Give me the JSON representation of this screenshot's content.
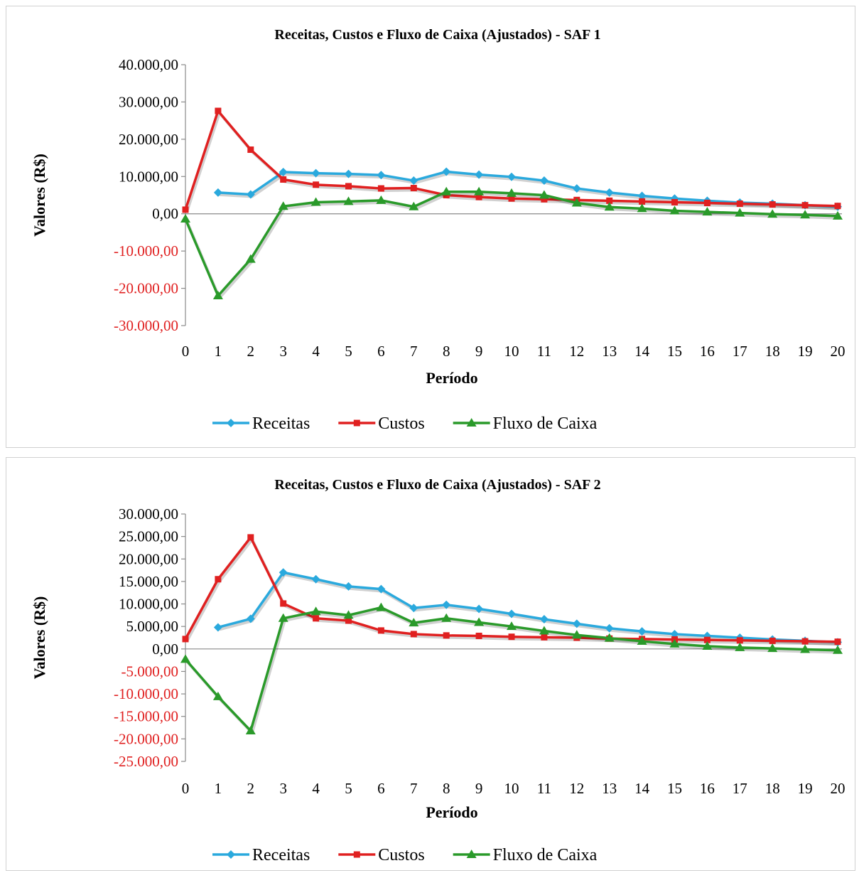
{
  "chart_data": [
    {
      "type": "line",
      "title": "Receitas, Custos e Fluxo de Caixa (Ajustados) - SAF 1",
      "xlabel": "Período",
      "ylabel": "Valores (R$)",
      "ylim": [
        -30000,
        40000
      ],
      "y_ticks": [
        "40.000,00",
        "30.000,00",
        "20.000,00",
        "10.000,00",
        "0,00",
        "-10.000,00",
        "-20.000,00",
        "-30.000,00"
      ],
      "y_tick_values": [
        40000,
        30000,
        20000,
        10000,
        0,
        -10000,
        -20000,
        -30000
      ],
      "categories": [
        "0",
        "1",
        "2",
        "3",
        "4",
        "5",
        "6",
        "7",
        "8",
        "9",
        "10",
        "11",
        "12",
        "13",
        "14",
        "15",
        "16",
        "17",
        "18",
        "19",
        "20"
      ],
      "legend_position": "bottom",
      "series": [
        {
          "name": "Receitas",
          "color": "#2aa9dd",
          "marker": "diamond",
          "values": [
            null,
            5700,
            5200,
            11200,
            10900,
            10700,
            10400,
            8900,
            11300,
            10500,
            9900,
            8900,
            6800,
            5700,
            4800,
            4100,
            3500,
            3000,
            2700,
            2300,
            1900
          ]
        },
        {
          "name": "Custos",
          "color": "#e02020",
          "marker": "square",
          "values": [
            1100,
            27600,
            17200,
            9200,
            7800,
            7400,
            6800,
            6900,
            5000,
            4500,
            4100,
            3900,
            3700,
            3500,
            3300,
            3100,
            2900,
            2700,
            2500,
            2300,
            2100
          ]
        },
        {
          "name": "Fluxo de Caixa",
          "color": "#2a9a2a",
          "marker": "triangle",
          "values": [
            -1400,
            -22000,
            -12200,
            2000,
            3100,
            3300,
            3600,
            1900,
            5900,
            5900,
            5500,
            5000,
            2900,
            1800,
            1400,
            800,
            500,
            200,
            -100,
            -300,
            -600
          ]
        }
      ]
    },
    {
      "type": "line",
      "title": "Receitas, Custos e Fluxo de Caixa (Ajustados) - SAF 2",
      "xlabel": "Período",
      "ylabel": "Valores (R$)",
      "ylim": [
        -25000,
        30000
      ],
      "y_ticks": [
        "30.000,00",
        "25.000,00",
        "20.000,00",
        "15.000,00",
        "10.000,00",
        "5.000,00",
        "0,00",
        "-5.000,00",
        "-10.000,00",
        "-15.000,00",
        "-20.000,00",
        "-25.000,00"
      ],
      "y_tick_values": [
        30000,
        25000,
        20000,
        15000,
        10000,
        5000,
        0,
        -5000,
        -10000,
        -15000,
        -20000,
        -25000
      ],
      "categories": [
        "0",
        "1",
        "2",
        "3",
        "4",
        "5",
        "6",
        "7",
        "8",
        "9",
        "10",
        "11",
        "12",
        "13",
        "14",
        "15",
        "16",
        "17",
        "18",
        "19",
        "20"
      ],
      "legend_position": "bottom",
      "series": [
        {
          "name": "Receitas",
          "color": "#2aa9dd",
          "marker": "diamond",
          "values": [
            null,
            4800,
            6700,
            17000,
            15500,
            13900,
            13300,
            9100,
            9800,
            8900,
            7800,
            6600,
            5600,
            4600,
            3900,
            3300,
            2900,
            2500,
            2100,
            1800,
            1500
          ]
        },
        {
          "name": "Custos",
          "color": "#e02020",
          "marker": "square",
          "values": [
            2200,
            15500,
            24800,
            10100,
            6800,
            6300,
            4100,
            3300,
            3000,
            2900,
            2700,
            2600,
            2500,
            2300,
            2200,
            2100,
            2000,
            1900,
            1800,
            1700,
            1600
          ]
        },
        {
          "name": "Fluxo de Caixa",
          "color": "#2a9a2a",
          "marker": "triangle",
          "values": [
            -2300,
            -10600,
            -18200,
            6800,
            8300,
            7500,
            9200,
            5800,
            6800,
            5900,
            5000,
            4000,
            3100,
            2400,
            1700,
            1100,
            600,
            300,
            100,
            -100,
            -300
          ]
        }
      ]
    }
  ]
}
